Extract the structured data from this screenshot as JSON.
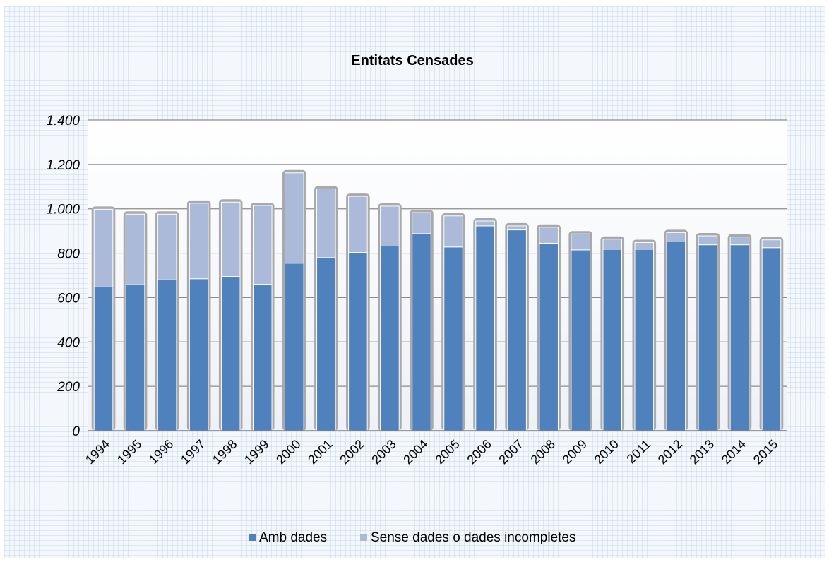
{
  "chart_data": {
    "type": "bar",
    "stacked": true,
    "title": "Entitats Censades",
    "xlabel": "",
    "ylabel": "",
    "categories": [
      "1994",
      "1995",
      "1996",
      "1997",
      "1998",
      "1999",
      "2000",
      "2001",
      "2002",
      "2003",
      "2004",
      "2005",
      "2006",
      "2007",
      "2008",
      "2009",
      "2010",
      "2011",
      "2012",
      "2013",
      "2014",
      "2015"
    ],
    "series": [
      {
        "name": "Amb dades",
        "color": "#4f81bd",
        "values": [
          648,
          658,
          680,
          685,
          695,
          660,
          755,
          780,
          803,
          832,
          888,
          828,
          923,
          905,
          845,
          815,
          818,
          818,
          853,
          838,
          838,
          825
        ]
      },
      {
        "name": "Sense dades o dades incompletes",
        "color": "#aabad8",
        "values": [
          350,
          318,
          296,
          340,
          335,
          355,
          407,
          310,
          253,
          180,
          95,
          140,
          22,
          18,
          72,
          72,
          45,
          30,
          40,
          40,
          35,
          35
        ]
      }
    ],
    "ylim": [
      0,
      1400
    ],
    "yticks": [
      0,
      200,
      400,
      600,
      800,
      1000,
      1200,
      1400
    ],
    "ytick_labels": [
      "0",
      "200",
      "400",
      "600",
      "800",
      "1.000",
      "1.200",
      "1.400"
    ],
    "grid": true,
    "legend": "bottom"
  }
}
